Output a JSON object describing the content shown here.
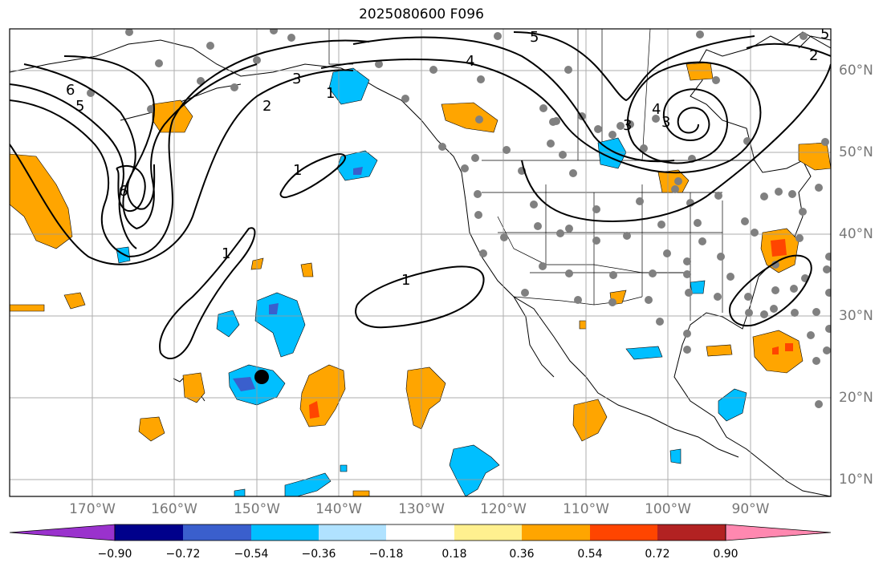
{
  "title": "2025080600 F096",
  "lon_labels": [
    "170°W",
    "160°W",
    "150°W",
    "140°W",
    "130°W",
    "120°W",
    "110°W",
    "100°W",
    "90°W"
  ],
  "lat_labels": [
    "60°N",
    "50°N",
    "40°N",
    "30°N",
    "20°N",
    "10°N"
  ],
  "contour_labels": [
    "6",
    "5",
    "3",
    "2",
    "1",
    "1",
    "1",
    "1",
    "5",
    "4",
    "3",
    "4",
    "5",
    "6",
    "3",
    "2"
  ],
  "colorbar": {
    "ticks": [
      "−0.90",
      "−0.72",
      "−0.54",
      "−0.36",
      "−0.18",
      "0.18",
      "0.36",
      "0.54",
      "0.72",
      "0.90"
    ],
    "colors": [
      "#9a32cd",
      "#00008b",
      "#3a5fcd",
      "#00bfff",
      "#b0e2ff",
      "#ffffff",
      "#fff08f",
      "#ffa500",
      "#ff4500",
      "#b22222",
      "#ff88b0"
    ]
  },
  "marker": "filled-circle"
}
